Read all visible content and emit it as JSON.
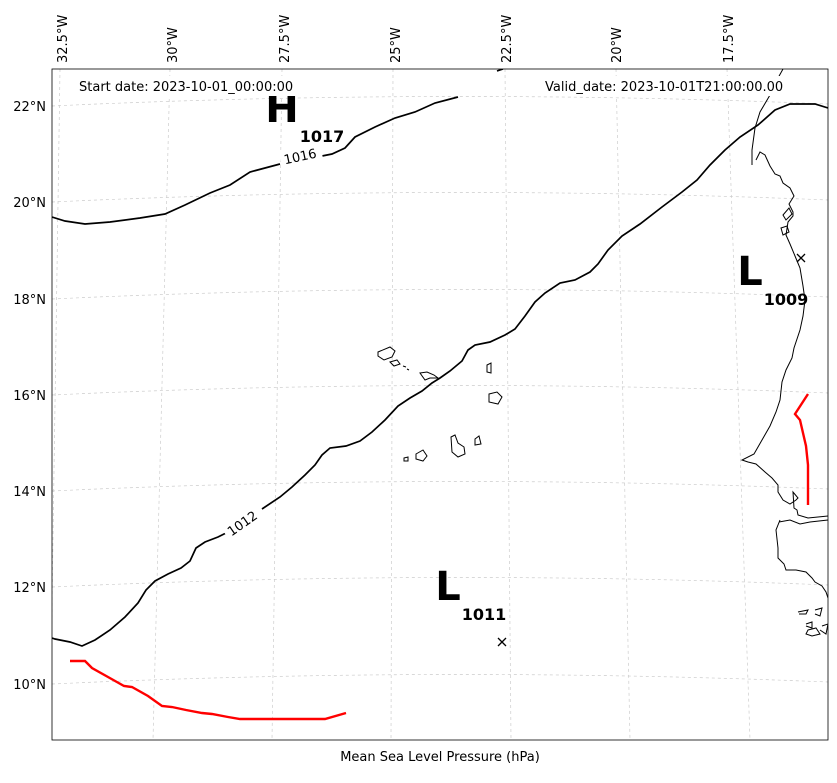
{
  "map": {
    "start_date": "Start date: 2023-10-01_00:00:00",
    "valid_date": "Valid_date: 2023-10-01T21:00:00.00",
    "caption": "Mean Sea Level Pressure (hPa)",
    "longitude_labels": [
      "32.5°W",
      "30°W",
      "27.5°W",
      "25°W",
      "22.5°W",
      "20°W",
      "17.5°W"
    ],
    "latitude_labels": [
      "22°N",
      "20°N",
      "18°N",
      "16°N",
      "14°N",
      "12°N",
      "10°N"
    ],
    "isobar_labels": [
      "1016",
      "1012"
    ],
    "pressure_centers": [
      {
        "type": "H",
        "value": "1017"
      },
      {
        "type": "L",
        "value": "1009"
      },
      {
        "type": "L",
        "value": "1011"
      }
    ],
    "colors": {
      "isobar": "#000000",
      "front": "#ff0000",
      "grid": "#cccccc",
      "coastline": "#000000"
    }
  }
}
